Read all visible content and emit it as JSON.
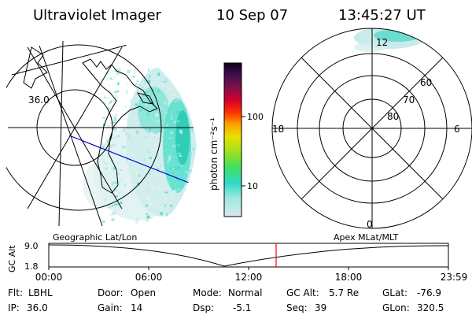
{
  "header": {
    "title": "Ultraviolet Imager",
    "date": "10 Sep 07",
    "time": "13:45:27 UT"
  },
  "colorbar": {
    "label": "photon cm⁻²s⁻¹",
    "ticks": [
      "100",
      "10"
    ]
  },
  "geographic_map": {
    "lat_labels": [
      "36.0"
    ]
  },
  "polar_plot": {
    "mlt_labels": {
      "top": "12",
      "left": "18",
      "right": "6",
      "bottom": "0"
    },
    "lat_labels": [
      "60",
      "70",
      "80"
    ]
  },
  "altitude_strip": {
    "ylabel": "GC Alt",
    "yticks": [
      "9.0",
      "1.8"
    ],
    "left_caption": "Geographic Lat/Lon",
    "right_caption": "Apex MLat/MLT",
    "time_ticks": [
      "00:00",
      "06:00",
      "12:00",
      "18:00",
      "23:59"
    ]
  },
  "info": {
    "row1": [
      {
        "key": "Flt:",
        "value": "LBHL"
      },
      {
        "key": "Door:",
        "value": "Open"
      },
      {
        "key": "Mode:",
        "value": "Normal"
      },
      {
        "key": "GC Alt:",
        "value": "5.7 Re"
      },
      {
        "key": "GLat:",
        "value": "-76.9"
      }
    ],
    "row2": [
      {
        "key": "IP:",
        "value": "36.0"
      },
      {
        "key": "Gain:",
        "value": "14"
      },
      {
        "key": "Dsp:",
        "value": "-5.1"
      },
      {
        "key": "Seq:",
        "value": "39"
      },
      {
        "key": "GLon:",
        "value": "320.5"
      }
    ]
  },
  "colors": {
    "foreground": "#000000",
    "background": "#ffffff",
    "current_time_marker": "#ff0000",
    "terminator_line": "#0000cc",
    "aurora_main": "#3ddcc4",
    "aurora_dim": "#bfe7e7"
  }
}
